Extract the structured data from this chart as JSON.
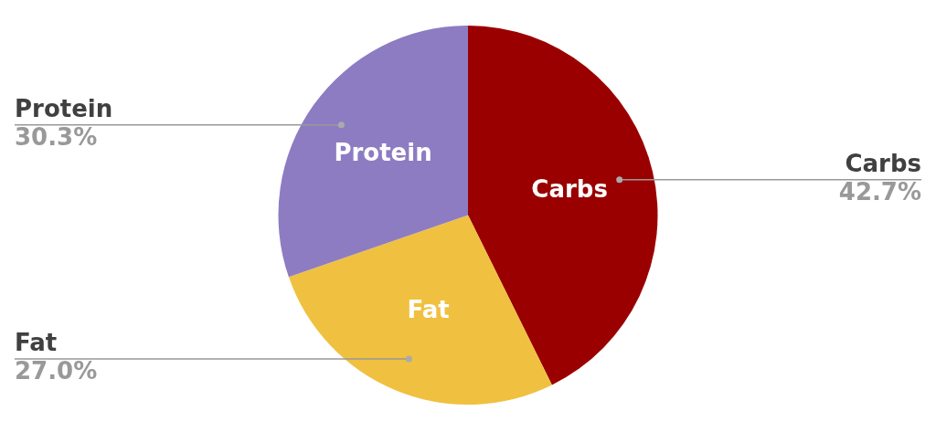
{
  "chart_data": {
    "type": "pie",
    "categories": [
      "Carbs",
      "Fat",
      "Protein"
    ],
    "values": [
      42.7,
      27.0,
      30.3
    ],
    "colors": [
      "#9b0000",
      "#f0c040",
      "#8d7cc2"
    ],
    "value_labels": [
      "42.7%",
      "27.0%",
      "30.3%"
    ],
    "legend": false
  }
}
